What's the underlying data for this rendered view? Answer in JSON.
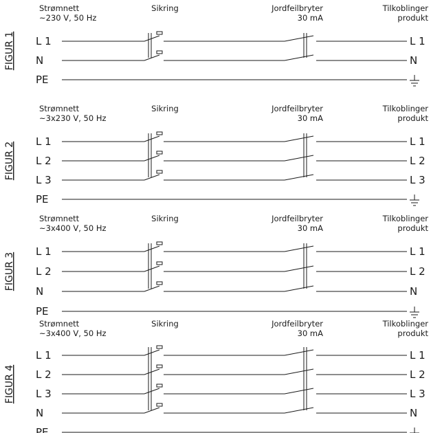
{
  "figures": [
    {
      "figure_label": "FIGUR 1",
      "header": {
        "grid_name": "Strømnett",
        "grid_spec": "~230 V, 50 Hz",
        "fuse": "Sikring",
        "rcd": "Jordfeilbryter",
        "rcd_rating": "30 mA",
        "connections_1": "Tilkoblinger",
        "connections_2": "produkt"
      },
      "wires": [
        {
          "left": "L 1",
          "right": "L 1"
        },
        {
          "left": "N",
          "right": "N"
        }
      ],
      "earth": {
        "left": "PE",
        "right_icon": "earth-ground-icon"
      }
    },
    {
      "figure_label": "FIGUR 2",
      "header": {
        "grid_name": "Strømnett",
        "grid_spec": "~3x230 V, 50 Hz",
        "fuse": "Sikring",
        "rcd": "Jordfeilbryter",
        "rcd_rating": "30 mA",
        "connections_1": "Tilkoblinger",
        "connections_2": "produkt"
      },
      "wires": [
        {
          "left": "L 1",
          "right": "L 1"
        },
        {
          "left": "L 2",
          "right": "L 2"
        },
        {
          "left": "L 3",
          "right": "L 3"
        }
      ],
      "earth": {
        "left": "PE",
        "right_icon": "earth-ground-icon"
      }
    },
    {
      "figure_label": "FIGUR 3",
      "header": {
        "grid_name": "Strømnett",
        "grid_spec": "~3x400 V, 50 Hz",
        "fuse": "Sikring",
        "rcd": "Jordfeilbryter",
        "rcd_rating": "30 mA",
        "connections_1": "Tilkoblinger",
        "connections_2": "produkt"
      },
      "wires": [
        {
          "left": "L 1",
          "right": "L 1"
        },
        {
          "left": "L 2",
          "right": "L 2"
        },
        {
          "left": "N",
          "right": "N"
        }
      ],
      "earth": {
        "left": "PE",
        "right_icon": "earth-ground-icon"
      }
    },
    {
      "figure_label": "FIGUR 4",
      "header": {
        "grid_name": "Strømnett",
        "grid_spec": "~3x400 V, 50 Hz",
        "fuse": "Sikring",
        "rcd": "Jordfeilbryter",
        "rcd_rating": "30 mA",
        "connections_1": "Tilkoblinger",
        "connections_2": "produkt"
      },
      "wires": [
        {
          "left": "L 1",
          "right": "L 1"
        },
        {
          "left": "L 2",
          "right": "L 2"
        },
        {
          "left": "L 3",
          "right": "L 3"
        },
        {
          "left": "N",
          "right": "N"
        }
      ],
      "earth": {
        "left": "PE",
        "right_icon": "earth-ground-icon"
      }
    }
  ]
}
